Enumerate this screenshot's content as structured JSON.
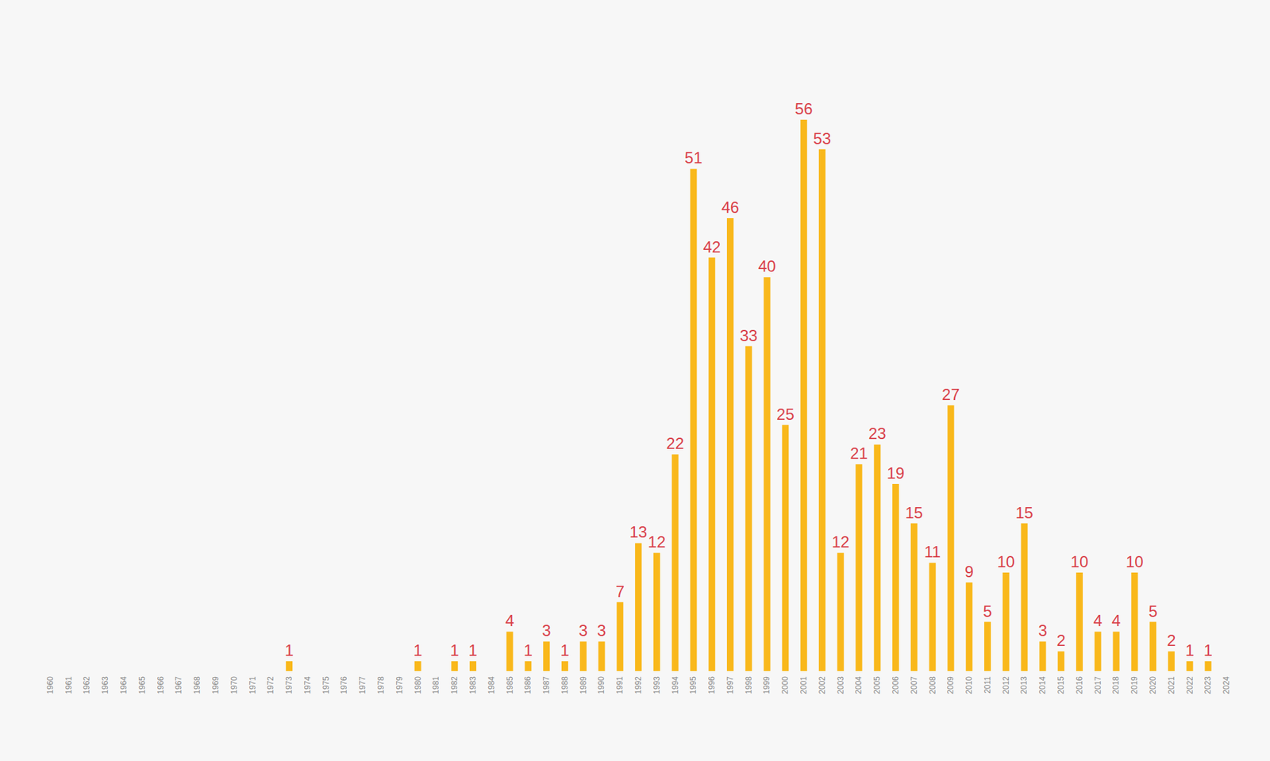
{
  "chart_data": {
    "type": "bar",
    "categories": [
      "1960",
      "1961",
      "1962",
      "1963",
      "1964",
      "1965",
      "1966",
      "1967",
      "1968",
      "1969",
      "1970",
      "1971",
      "1972",
      "1973",
      "1974",
      "1975",
      "1976",
      "1977",
      "1978",
      "1979",
      "1980",
      "1981",
      "1982",
      "1983",
      "1984",
      "1985",
      "1986",
      "1987",
      "1988",
      "1989",
      "1990",
      "1991",
      "1992",
      "1993",
      "1994",
      "1995",
      "1996",
      "1997",
      "1998",
      "1999",
      "2000",
      "2001",
      "2002",
      "2003",
      "2004",
      "2005",
      "2006",
      "2007",
      "2008",
      "2009",
      "2010",
      "2011",
      "2012",
      "2013",
      "2014",
      "2015",
      "2016",
      "2017",
      "2018",
      "2019",
      "2020",
      "2021",
      "2022",
      "2023",
      "2024"
    ],
    "values": [
      null,
      null,
      null,
      null,
      null,
      null,
      null,
      null,
      null,
      null,
      null,
      null,
      null,
      1,
      null,
      null,
      null,
      null,
      null,
      null,
      1,
      null,
      1,
      1,
      null,
      4,
      1,
      3,
      1,
      3,
      3,
      7,
      13,
      12,
      22,
      51,
      42,
      46,
      33,
      40,
      25,
      56,
      53,
      12,
      21,
      23,
      19,
      15,
      11,
      27,
      9,
      5,
      10,
      15,
      3,
      2,
      10,
      4,
      4,
      10,
      5,
      2,
      1,
      1,
      null
    ],
    "color": "#f9b81b",
    "ylim": [
      0,
      56
    ],
    "data_labels": true,
    "tick_labels": "x",
    "grid": false
  }
}
